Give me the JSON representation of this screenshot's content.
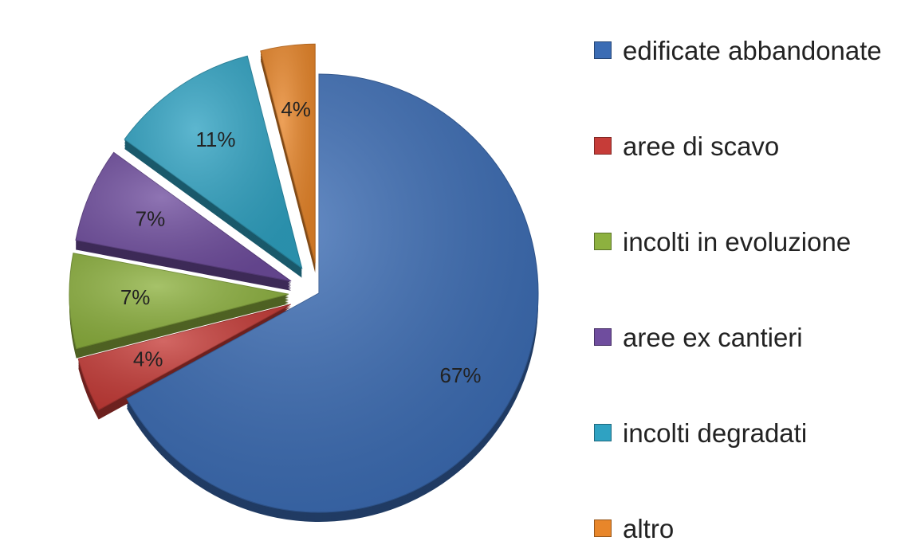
{
  "chart_data": {
    "type": "pie",
    "categories": [
      "edificate abbandonate",
      "aree di scavo",
      "incolti in evoluzione",
      "aree ex cantieri",
      "incolti degradati",
      "altro"
    ],
    "values": [
      67,
      4,
      7,
      7,
      11,
      4
    ],
    "value_labels": [
      "67%",
      "4%",
      "7%",
      "7%",
      "11%",
      "4%"
    ],
    "colors": [
      "#3b6cb4",
      "#c63c38",
      "#8db13f",
      "#6f4d9e",
      "#2fa2c2",
      "#e8862a"
    ],
    "legend": "right"
  }
}
